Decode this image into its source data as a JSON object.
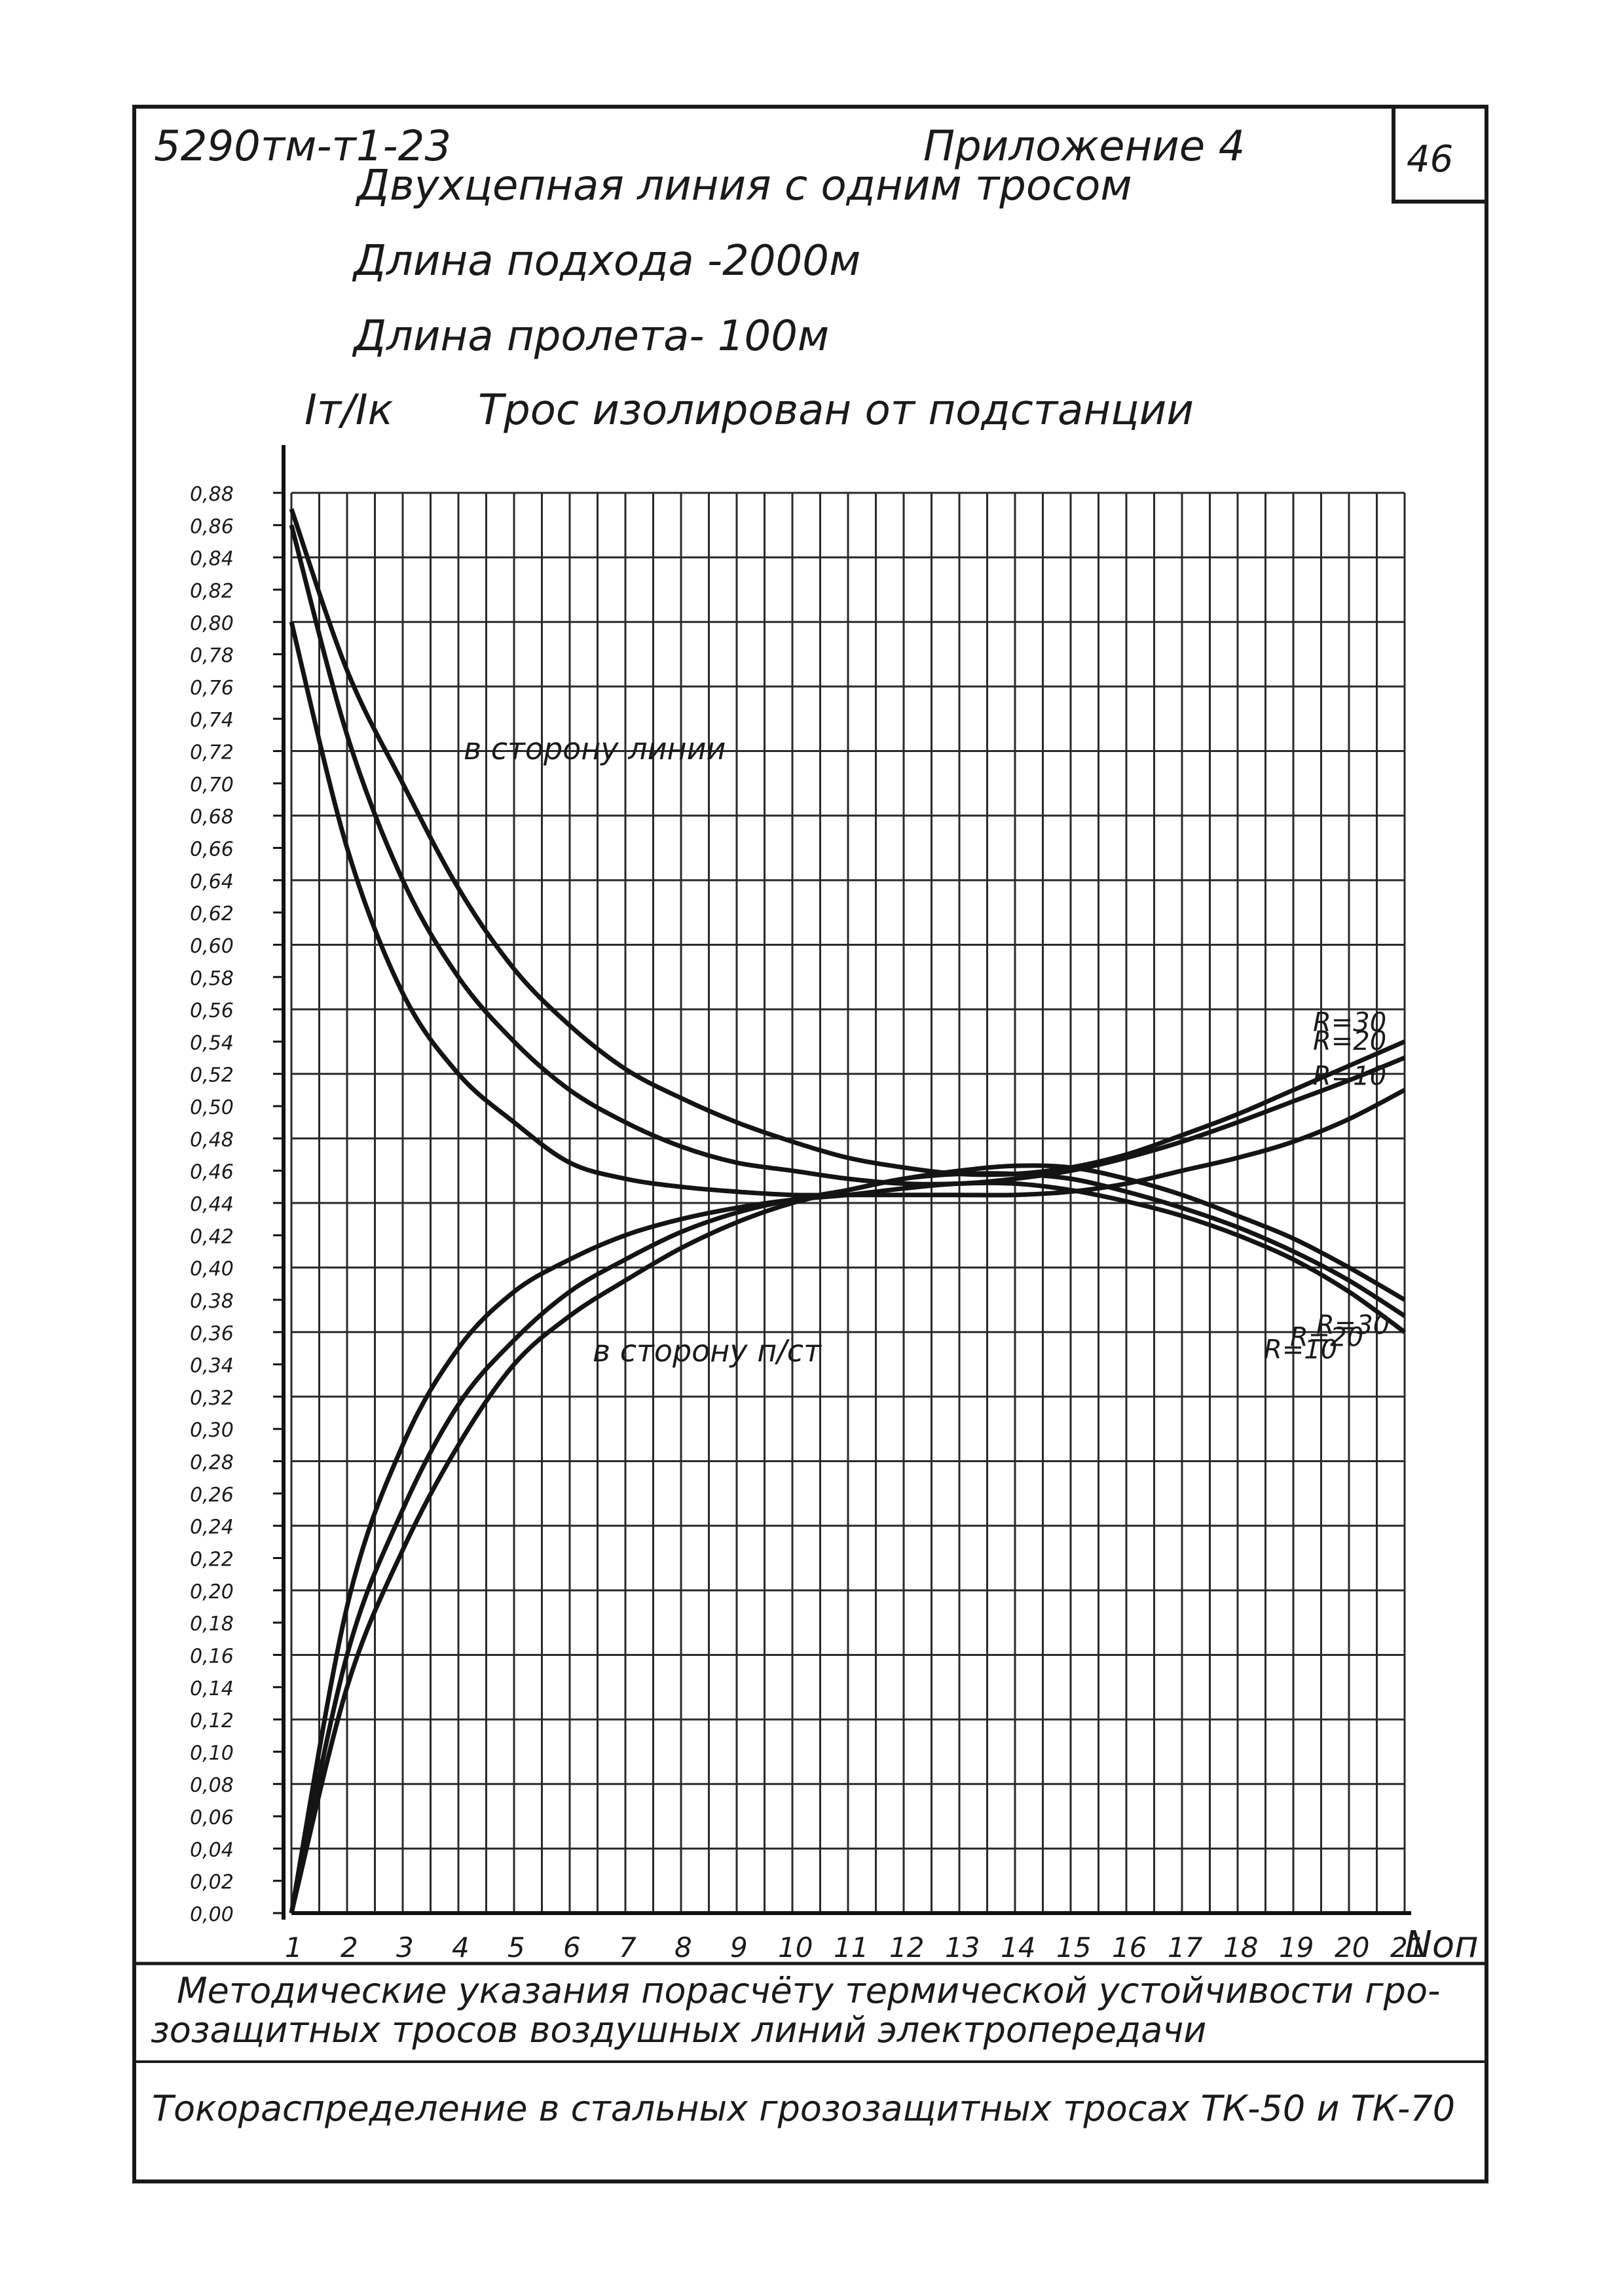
{
  "header": {
    "doc_code": "5290тм-т1-23",
    "appendix": "Приложение 4",
    "page_number": "46"
  },
  "chart_data": {
    "type": "line",
    "title": "Двухцепная линия с одним тросом",
    "subtitle_lines": [
      "Длина подхода -2000м",
      "Длина пролета- 100м"
    ],
    "ylabel": "Iт/Iк",
    "condition": "Трос изолирован от подстанции",
    "xlabel": "Nоп",
    "xlim": [
      1,
      21
    ],
    "ylim": [
      0,
      0.88
    ],
    "x_ticks": [
      "1",
      "2",
      "3",
      "4",
      "5",
      "6",
      "7",
      "8",
      "9",
      "10",
      "11",
      "12",
      "13",
      "14",
      "15",
      "16",
      "17",
      "18",
      "19",
      "20",
      "21"
    ],
    "y_ticks": [
      "0,00",
      "0,02",
      "0,04",
      "0,06",
      "0,08",
      "0,10",
      "0,12",
      "0,14",
      "0,16",
      "0,18",
      "0,20",
      "0,22",
      "0,24",
      "0,26",
      "0,28",
      "0,30",
      "0,32",
      "0,34",
      "0,36",
      "0,38",
      "0,40",
      "0,42",
      "0,44",
      "0,46",
      "0,48",
      "0,50",
      "0,52",
      "0,54",
      "0,56",
      "0,58",
      "0,60",
      "0,62",
      "0,64",
      "0,66",
      "0,68",
      "0,70",
      "0,72",
      "0,74",
      "0,76",
      "0,78",
      "0,80",
      "0,82",
      "0,84",
      "0,86",
      "0,88"
    ],
    "x": [
      1,
      2,
      3,
      4,
      5,
      6,
      7,
      8,
      9,
      10,
      11,
      12,
      13,
      14,
      15,
      16,
      17,
      18,
      19,
      20,
      21
    ],
    "series": [
      {
        "name": "R=10",
        "group": "в сторону линии",
        "values": [
          0.8,
          0.66,
          0.57,
          0.52,
          0.49,
          0.465,
          0.455,
          0.45,
          0.447,
          0.445,
          0.445,
          0.445,
          0.445,
          0.445,
          0.447,
          0.452,
          0.46,
          0.468,
          0.478,
          0.492,
          0.51
        ]
      },
      {
        "name": "R=20",
        "group": "в сторону линии",
        "values": [
          0.86,
          0.73,
          0.64,
          0.58,
          0.54,
          0.51,
          0.49,
          0.475,
          0.465,
          0.46,
          0.455,
          0.452,
          0.452,
          0.455,
          0.46,
          0.468,
          0.478,
          0.49,
          0.503,
          0.516,
          0.53
        ]
      },
      {
        "name": "R=30",
        "group": "в сторону линии",
        "values": [
          0.87,
          0.77,
          0.7,
          0.635,
          0.585,
          0.55,
          0.523,
          0.505,
          0.49,
          0.478,
          0.468,
          0.462,
          0.458,
          0.458,
          0.462,
          0.47,
          0.482,
          0.495,
          0.51,
          0.525,
          0.54
        ]
      },
      {
        "name": "R=10",
        "group": "в сторону п/ст",
        "values": [
          0.0,
          0.19,
          0.29,
          0.35,
          0.385,
          0.405,
          0.42,
          0.43,
          0.437,
          0.442,
          0.445,
          0.449,
          0.452,
          0.452,
          0.448,
          0.441,
          0.432,
          0.42,
          0.405,
          0.385,
          0.36
        ]
      },
      {
        "name": "R=20",
        "group": "в сторону п/ст",
        "values": [
          0.0,
          0.16,
          0.25,
          0.315,
          0.355,
          0.385,
          0.405,
          0.422,
          0.434,
          0.442,
          0.448,
          0.455,
          0.458,
          0.458,
          0.455,
          0.447,
          0.437,
          0.425,
          0.41,
          0.392,
          0.37
        ]
      },
      {
        "name": "R=30",
        "group": "в сторону п/ст",
        "values": [
          0.0,
          0.14,
          0.225,
          0.29,
          0.34,
          0.37,
          0.392,
          0.412,
          0.428,
          0.44,
          0.448,
          0.455,
          0.46,
          0.463,
          0.462,
          0.455,
          0.445,
          0.432,
          0.418,
          0.4,
          0.38
        ]
      }
    ],
    "annotations": [
      "в сторону линии",
      "в сторону п/ст"
    ],
    "grid": true
  },
  "footer": {
    "line1": "Методические указания порасчёту термической устойчивости гро-",
    "line2": "зозащитных тросов воздушных линий электропередачи",
    "line3": "Токораспределение в стальных грозозащитных тросах ТК-50 и ТК-70"
  }
}
